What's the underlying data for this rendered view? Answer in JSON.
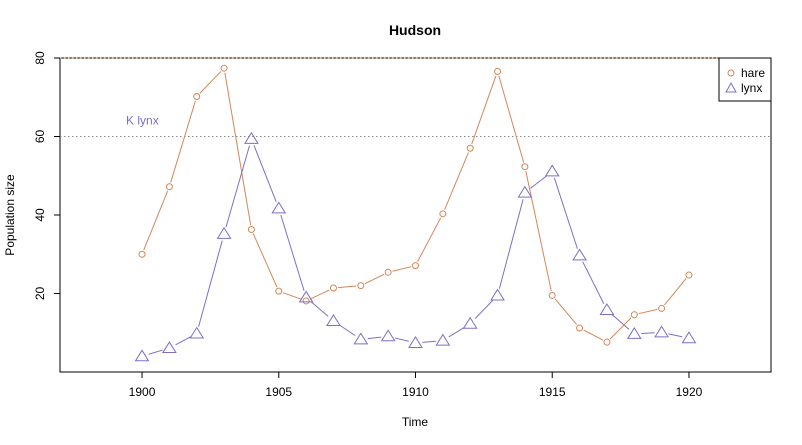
{
  "chart_data": {
    "type": "line",
    "title": "Hudson",
    "xlabel": "Time",
    "ylabel": "Population size",
    "xlim": [
      1997,
      1923
    ],
    "ylim": [
      0,
      80
    ],
    "x_ticks": [
      1900,
      1905,
      1910,
      1915,
      1920
    ],
    "y_ticks": [
      20,
      40,
      60,
      80
    ],
    "grid": false,
    "legend_position": "top-right",
    "x": [
      1900,
      1901,
      1902,
      1903,
      1904,
      1905,
      1906,
      1907,
      1908,
      1909,
      1910,
      1911,
      1912,
      1913,
      1914,
      1915,
      1916,
      1917,
      1918,
      1919,
      1920
    ],
    "series": [
      {
        "name": "hare",
        "color": "#D2875A",
        "marker": "circle",
        "values": [
          30,
          47.2,
          70.2,
          77.4,
          36.3,
          20.6,
          18.1,
          21.4,
          22,
          25.4,
          27.1,
          40.3,
          57,
          76.6,
          52.3,
          19.5,
          11.2,
          7.6,
          14.6,
          16.2,
          24.7
        ]
      },
      {
        "name": "lynx",
        "color": "#7B70C9",
        "marker": "triangle",
        "values": [
          4,
          6.1,
          9.8,
          35.2,
          59.4,
          41.7,
          19,
          13,
          8.3,
          9.1,
          7.4,
          8,
          12.3,
          19.5,
          45.7,
          51.1,
          29.7,
          15.8,
          9.7,
          10.1,
          8.6
        ]
      }
    ],
    "reference_lines": [
      {
        "y": 80,
        "color": "#D2875A",
        "style": "dotted"
      },
      {
        "y": 60,
        "color": "#888888",
        "style": "dotted"
      }
    ],
    "annotations": [
      {
        "text": "K lynx",
        "x": 1900,
        "y": 62,
        "color": "#7B70C9"
      }
    ]
  }
}
